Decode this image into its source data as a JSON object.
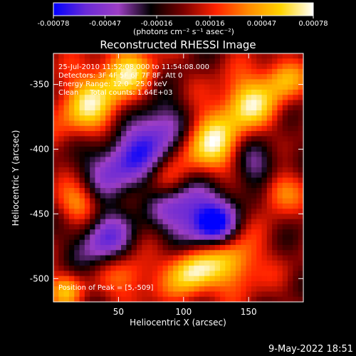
{
  "chart_data": {
    "type": "heatmap",
    "title": "Reconstructed RHESSI Image",
    "xlabel": "Heliocentric X (arcsec)",
    "ylabel": "Heliocentric Y (arcsec)",
    "xlim": [
      0,
      192
    ],
    "ylim": [
      -518,
      -326
    ],
    "x_ticks": [
      50,
      100,
      150
    ],
    "y_ticks": [
      -350,
      -400,
      -450,
      -500
    ],
    "colorbar": {
      "range": [
        -0.00078,
        0.00078
      ],
      "tick_values": [
        -0.00078,
        -0.00047,
        -0.00016,
        0.00016,
        0.00047,
        0.00078
      ],
      "tick_labels": [
        "-0.00078",
        "-0.00047",
        "-0.00016",
        "0.00016",
        "0.00047",
        "0.00078"
      ],
      "units": "(photons cm⁻² s⁻¹ asec⁻²)",
      "colors": [
        "#0000ff",
        "#6a2ad6",
        "#9d3ec4",
        "#000000",
        "#7a0000",
        "#ff2200",
        "#ff8a00",
        "#ffd400",
        "#ffffff"
      ]
    },
    "info_lines": [
      "25-Jul-2010 11:52:08.000 to 11:54:08.000",
      "Detectors: 3F 4F 5F 6F 7F 8F, Att 0",
      "Energy Range: 12.0 - 25.0 keV",
      "Clean     Total counts: 1.64E+03"
    ],
    "peak_label": "Position of Peak = [5,-509]",
    "peak": [
      5,
      -509
    ]
  },
  "footer": {
    "timestamp": "9-May-2022 18:51"
  }
}
